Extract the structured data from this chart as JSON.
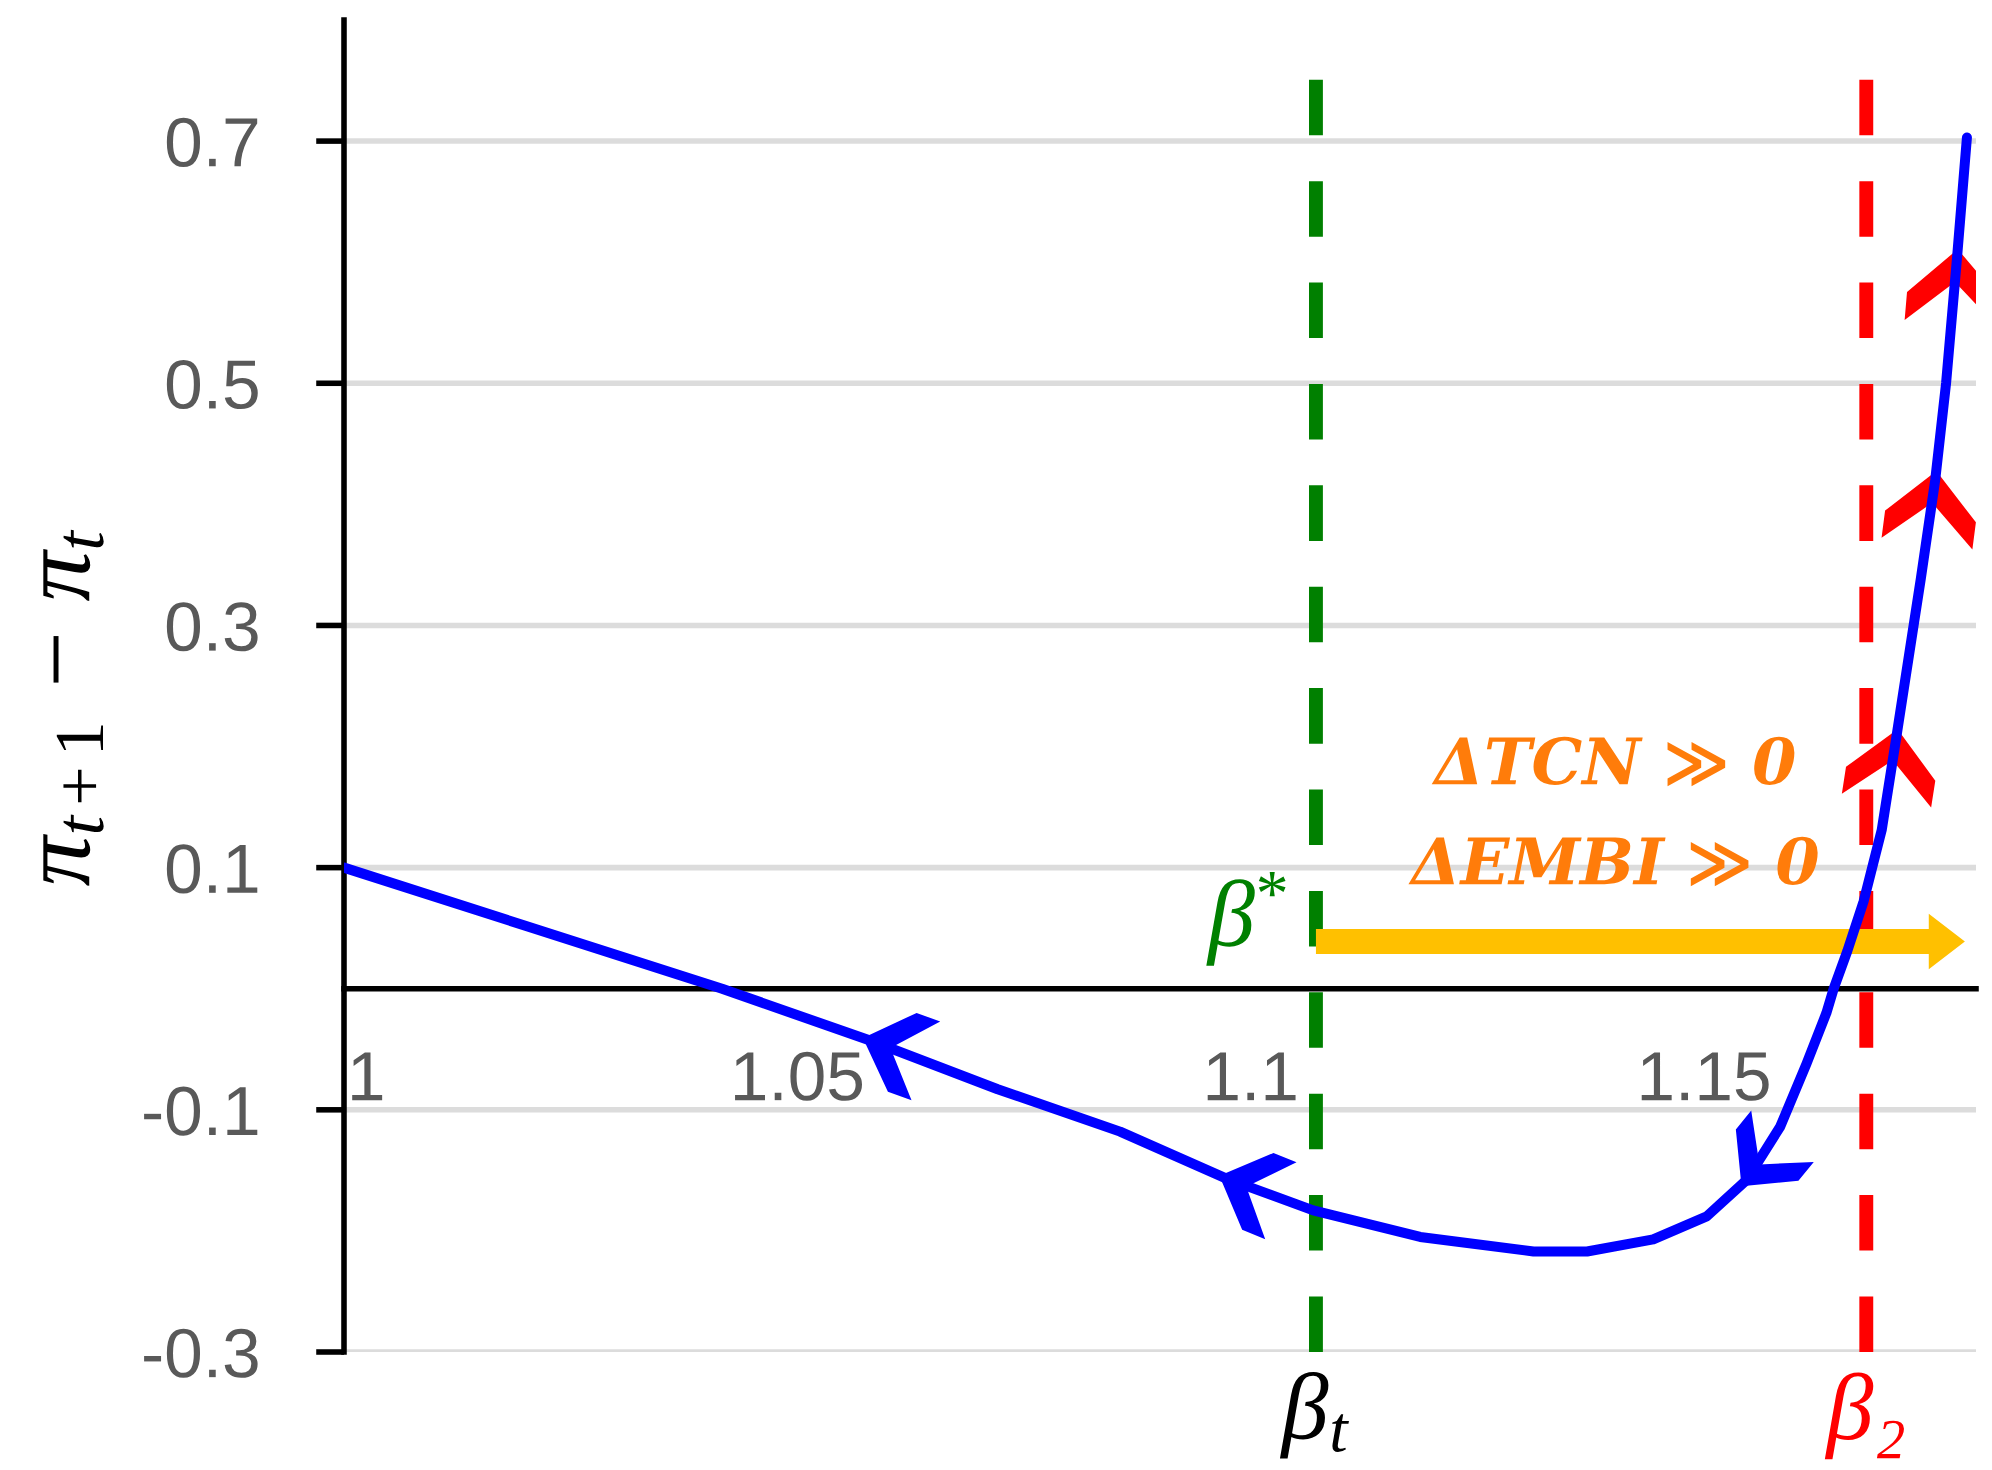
{
  "chart_data": {
    "type": "line",
    "ylabel": "π$_{t+1}$ − π$_{t}$",
    "annotations": [
      "β$^{*}$",
      "ΔTCN ≫ 0",
      "ΔEMBI ≫ 0"
    ],
    "x": [
      1.0,
      1.02,
      1.0417,
      1.0581,
      1.0721,
      1.0856,
      1.0974,
      1.1069,
      1.1187,
      1.1312,
      1.1371,
      1.1444,
      1.1503,
      1.1547,
      1.1584,
      1.1613,
      1.1635,
      1.1643,
      1.1658,
      1.1676,
      1.1696,
      1.1712,
      1.1739,
      1.1755,
      1.1767,
      1.1779,
      1.179
    ],
    "series": [
      {
        "color": "#0000ff",
        "values": [
          0.1,
          0.052,
          0.0,
          -0.043,
          -0.083,
          -0.118,
          -0.157,
          -0.183,
          -0.205,
          -0.217,
          -0.217,
          -0.207,
          -0.188,
          -0.158,
          -0.114,
          -0.062,
          -0.02,
          0.0,
          0.031,
          0.072,
          0.131,
          0.207,
          0.338,
          0.42,
          0.5,
          0.603,
          0.703
        ]
      }
    ],
    "xlim": [
      1,
      1.18
    ],
    "xticks": [
      1,
      1.05,
      1.1,
      1.15
    ],
    "ylim": [
      -0.3,
      0.8
    ],
    "yticks": [
      -0.3,
      -0.1,
      0.1,
      0.3,
      0.5,
      0.7
    ],
    "grid": "y",
    "ref_lines": [
      {
        "axis": "x",
        "value": 1.1072,
        "label": "β$_{t}$",
        "color": "#008000",
        "line_style": "dashed"
      },
      {
        "axis": "x",
        "value": 1.1679,
        "label": "β₂",
        "color": "#ff0000",
        "line_style": "dashed"
      }
    ]
  }
}
